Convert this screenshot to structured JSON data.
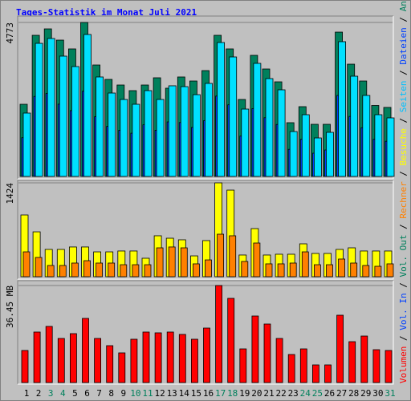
{
  "title": "Tages-Statistik im Monat Juli 2021",
  "title_color": "#0000ff",
  "categories": [
    "1",
    "2",
    "3",
    "4",
    "5",
    "6",
    "7",
    "8",
    "9",
    "10",
    "11",
    "12",
    "13",
    "14",
    "15",
    "16",
    "17",
    "18",
    "19",
    "20",
    "21",
    "22",
    "23",
    "24",
    "25",
    "26",
    "27",
    "28",
    "29",
    "30",
    "31"
  ],
  "category_colors": [
    "#000000",
    "#000000",
    "#00805c",
    "#00805c",
    "#000000",
    "#000000",
    "#000000",
    "#000000",
    "#000000",
    "#00805c",
    "#00805c",
    "#000000",
    "#000000",
    "#000000",
    "#000000",
    "#000000",
    "#00805c",
    "#00805c",
    "#000000",
    "#000000",
    "#000000",
    "#000000",
    "#000000",
    "#00805c",
    "#00805c",
    "#000000",
    "#000000",
    "#000000",
    "#000000",
    "#000000",
    "#00805c"
  ],
  "legend_separator": " / ",
  "legend": [
    {
      "name": "Volumen",
      "color": "#ff0000"
    },
    {
      "name": "Vol. In",
      "color": "#0040ff"
    },
    {
      "name": "Vol. Out",
      "color": "#00805c"
    },
    {
      "name": "Rechner",
      "color": "#ff8000"
    },
    {
      "name": "Besuche",
      "color": "#ffff00"
    },
    {
      "name": "Seiten",
      "color": "#00c0ff"
    },
    {
      "name": "Dateien",
      "color": "#0040ff"
    },
    {
      "name": "Anfragen",
      "color": "#00805c"
    }
  ],
  "chart_data": [
    {
      "type": "bar",
      "ylim": [
        0,
        4773
      ],
      "yticks": [
        4773
      ],
      "series": [
        {
          "color": "#00805c",
          "values": [
            2237,
            4375,
            4574,
            4226,
            3953,
            4773,
            3455,
            3008,
            2834,
            2660,
            2834,
            3058,
            2735,
            3083,
            2958,
            3281,
            4375,
            3953,
            2386,
            3754,
            3331,
            2933,
            1666,
            2163,
            1616,
            1616,
            4474,
            3480,
            2958,
            2200,
            2140
          ]
        },
        {
          "color": "#0040ff",
          "values": [
            1200,
            2480,
            2570,
            2240,
            2040,
            2640,
            1850,
            1550,
            1430,
            1340,
            1600,
            1430,
            1690,
            1670,
            1520,
            1730,
            2490,
            2220,
            1250,
            2100,
            1820,
            1610,
            840,
            1150,
            720,
            820,
            2510,
            1860,
            1510,
            1150,
            1090
          ]
        },
        {
          "color": "#00e0ff",
          "values": [
            1964,
            4126,
            4276,
            3729,
            3406,
            4400,
            3083,
            2585,
            2386,
            2237,
            2660,
            2386,
            2810,
            2784,
            2535,
            2884,
            4151,
            3704,
            2088,
            3505,
            3033,
            2685,
            1392,
            1914,
            1193,
            1367,
            4177,
            3107,
            2511,
            1914,
            1815
          ]
        }
      ]
    },
    {
      "type": "bar",
      "ylim": [
        0,
        1424
      ],
      "yticks": [
        1424
      ],
      "series": [
        {
          "color": "#ffff00",
          "values": [
            937,
            681,
            414,
            414,
            451,
            451,
            377,
            377,
            390,
            390,
            280,
            621,
            584,
            560,
            316,
            548,
            1424,
            1314,
            329,
            730,
            329,
            341,
            341,
            499,
            353,
            353,
            414,
            438,
            390,
            390,
            390
          ]
        },
        {
          "color": "#ff8000",
          "values": [
            377,
            292,
            170,
            170,
            207,
            243,
            207,
            207,
            182,
            182,
            182,
            438,
            451,
            438,
            195,
            255,
            645,
            621,
            231,
            511,
            195,
            195,
            207,
            377,
            182,
            182,
            268,
            207,
            170,
            158,
            195
          ]
        }
      ]
    },
    {
      "type": "bar",
      "ylim": [
        0,
        36.45
      ],
      "yticks": [
        {
          "value": 36.45,
          "label": "36.45 MB"
        }
      ],
      "series": [
        {
          "color": "#ff0000",
          "values": [
            12.05,
            18.98,
            21.09,
            16.57,
            18.38,
            24.1,
            16.57,
            13.86,
            11.15,
            16.27,
            18.98,
            18.68,
            18.98,
            18.08,
            16.27,
            20.48,
            36.45,
            31.63,
            12.65,
            25.0,
            21.99,
            16.57,
            10.54,
            12.65,
            6.63,
            6.63,
            25.3,
            15.36,
            17.47,
            12.35,
            12.05
          ]
        }
      ]
    }
  ]
}
